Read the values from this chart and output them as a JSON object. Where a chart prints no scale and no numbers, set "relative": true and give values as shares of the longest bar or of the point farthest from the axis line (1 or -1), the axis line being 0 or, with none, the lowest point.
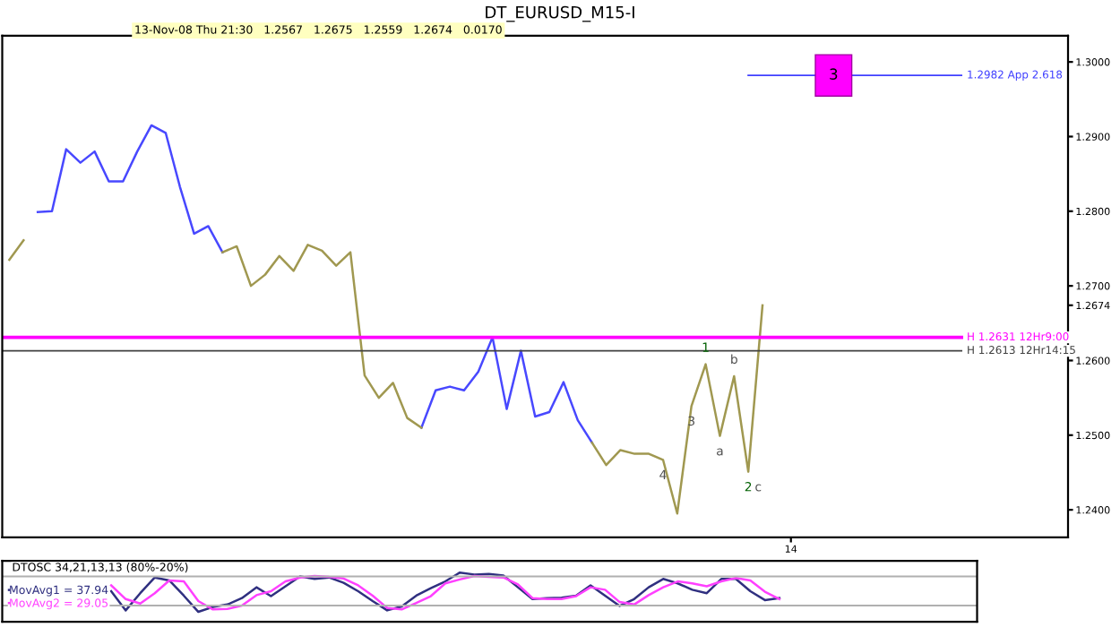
{
  "chart_data": [
    {
      "type": "line",
      "title": "DT_EURUSD_M15-I",
      "subtitle": "13-Nov-08 Thu 21:30   1.2567   1.2675   1.2559   1.2674   0.0170",
      "categories": [
        null,
        null,
        null,
        null,
        null,
        null,
        null,
        null,
        null,
        null,
        null,
        null,
        null,
        null,
        null,
        null,
        null,
        null,
        null,
        null,
        null,
        null,
        null,
        null,
        null,
        null,
        null,
        null,
        null,
        null,
        null,
        null,
        null,
        null,
        null,
        null,
        null,
        null,
        null,
        null,
        null,
        null,
        null,
        null,
        null,
        null,
        null,
        null,
        null,
        null,
        null,
        null,
        null,
        null,
        null,
        "14",
        null,
        null,
        null,
        null,
        null,
        null,
        null,
        null,
        null,
        null,
        null,
        null,
        null,
        null,
        null,
        null,
        null,
        null,
        null
      ],
      "series": [
        {
          "color": "#4848ff",
          "values": [
            null,
            null,
            1.2799,
            1.28,
            1.2883,
            1.2865,
            1.288,
            1.284,
            1.284,
            1.288,
            1.2915,
            1.2905,
            1.2833,
            1.277,
            1.278,
            1.2745,
            null,
            null,
            null,
            null,
            null,
            null,
            null,
            null,
            null,
            null,
            null,
            null,
            null,
            1.251,
            1.256,
            1.2565,
            1.256,
            1.2585,
            1.2631,
            1.2535,
            1.2613,
            1.2525,
            1.2531,
            1.2571,
            1.252,
            1.249,
            null,
            null,
            null,
            null,
            null,
            null,
            null,
            null,
            null,
            null,
            null,
            null,
            null,
            null,
            null,
            null,
            null,
            null,
            null,
            null,
            null,
            null,
            null,
            null,
            null,
            null,
            null,
            null,
            null,
            null,
            null,
            null,
            null
          ]
        },
        {
          "color": "#a09850",
          "values": [
            1.2735,
            1.2761,
            null,
            null,
            null,
            null,
            null,
            null,
            null,
            null,
            null,
            null,
            null,
            null,
            null,
            1.2745,
            1.2753,
            1.27,
            1.2715,
            1.274,
            1.272,
            1.2755,
            1.2747,
            1.2727,
            1.2745,
            1.258,
            1.255,
            1.257,
            1.2523,
            1.251,
            null,
            null,
            null,
            null,
            null,
            null,
            null,
            null,
            null,
            null,
            null,
            1.249,
            1.246,
            1.248,
            1.2475,
            1.2475,
            1.2467,
            1.2395,
            1.2539,
            1.2595,
            1.2499,
            1.2579,
            1.2451,
            1.2674,
            null,
            null,
            null,
            null,
            null,
            null,
            null,
            null,
            null,
            null,
            null,
            null,
            null,
            null,
            null,
            null,
            null,
            null,
            null,
            null,
            null
          ]
        }
      ],
      "ylim": [
        1.2363,
        1.3035
      ],
      "yticks": [
        {
          "value": 1.24,
          "label": "1.2400"
        },
        {
          "value": 1.25,
          "label": "1.2500"
        },
        {
          "value": 1.26,
          "label": "1.2600"
        },
        {
          "value": 1.2674,
          "label": "1.2674"
        },
        {
          "value": 1.27,
          "label": "1.2700"
        },
        {
          "value": 1.28,
          "label": "1.2800"
        },
        {
          "value": 1.29,
          "label": "1.2900"
        },
        {
          "value": 1.3,
          "label": "1.3000"
        }
      ],
      "ref_lines": [
        {
          "axis": "y",
          "value": 1.2982,
          "label": "1.2982 App 2.618",
          "color": "#4040ff"
        },
        {
          "axis": "y",
          "value": 1.2631,
          "label": "H 1.2631 12Hr9:00",
          "color": "#ff00ff"
        },
        {
          "axis": "y",
          "value": 1.2613,
          "label": "H 1.2613 12Hr14:15",
          "color": "#404040"
        }
      ],
      "annotations": [
        {
          "text": "3",
          "y": 1.2982
        },
        {
          "text": "1",
          "y": 1.2595
        },
        {
          "text": "2",
          "y": 1.2451
        },
        {
          "text": "3",
          "y": 1.2539
        },
        {
          "text": "4",
          "y": 1.2467
        },
        {
          "text": "a",
          "y": 1.2499
        },
        {
          "text": "b",
          "y": 1.2579
        },
        {
          "text": "c",
          "y": 1.2451
        }
      ],
      "grid": false,
      "legend": false,
      "marker": "none",
      "line_style": "solid"
    },
    {
      "type": "line",
      "title": "DTOSC 34,21,13,13 (80%-20%)",
      "relative": true,
      "categories": [
        null,
        null,
        null,
        null,
        null,
        null,
        null,
        null,
        null,
        null,
        null,
        null,
        null,
        null,
        null,
        null,
        null,
        null,
        null,
        null,
        null,
        null,
        null,
        null,
        null,
        null,
        null,
        null,
        null,
        null,
        null,
        null,
        null,
        null,
        null,
        null,
        null,
        null,
        null,
        null,
        null,
        null,
        null,
        null,
        null,
        null,
        null,
        null,
        null,
        null,
        null,
        null,
        null,
        null
      ],
      "series": [
        {
          "name": "MovAvg1 = 37.94",
          "color": "#303080",
          "values": [
            null,
            null,
            null,
            null,
            null,
            null,
            null,
            0.62,
            0.23,
            0.58,
            0.9,
            0.84,
            0.53,
            0.2,
            0.3,
            0.35,
            0.48,
            0.7,
            0.52,
            0.72,
            0.92,
            0.87,
            0.9,
            0.79,
            0.62,
            0.42,
            0.23,
            0.31,
            0.53,
            0.68,
            0.82,
            1,
            0.96,
            0.97,
            0.94,
            0.7,
            0.46,
            0.48,
            0.49,
            0.53,
            0.74,
            0.53,
            0.32,
            0.46,
            0.7,
            0.87,
            0.78,
            0.65,
            0.58,
            0.87,
            0.87,
            0.62,
            0.44,
            0.48
          ]
        },
        {
          "name": "MovAvg2 = 29.05",
          "color": "#ff40ff",
          "values": [
            null,
            null,
            null,
            null,
            null,
            null,
            null,
            0.74,
            0.46,
            0.37,
            0.58,
            0.84,
            0.82,
            0.42,
            0.25,
            0.26,
            0.33,
            0.54,
            0.62,
            0.82,
            0.9,
            0.93,
            0.91,
            0.88,
            0.74,
            0.53,
            0.28,
            0.25,
            0.38,
            0.52,
            0.78,
            0.86,
            0.93,
            0.91,
            0.9,
            0.76,
            0.48,
            0.46,
            0.46,
            0.52,
            0.7,
            0.65,
            0.4,
            0.35,
            0.54,
            0.7,
            0.82,
            0.78,
            0.72,
            0.82,
            0.89,
            0.84,
            0.61,
            0.46
          ]
        }
      ],
      "ref_lines": [
        {
          "axis": "y",
          "value": 0.92,
          "color": "#b0b0b0"
        },
        {
          "axis": "y",
          "value": 0.33,
          "color": "#b0b0b0"
        }
      ],
      "grid": false,
      "legend": "left",
      "marker": "none",
      "line_style": "solid"
    }
  ]
}
